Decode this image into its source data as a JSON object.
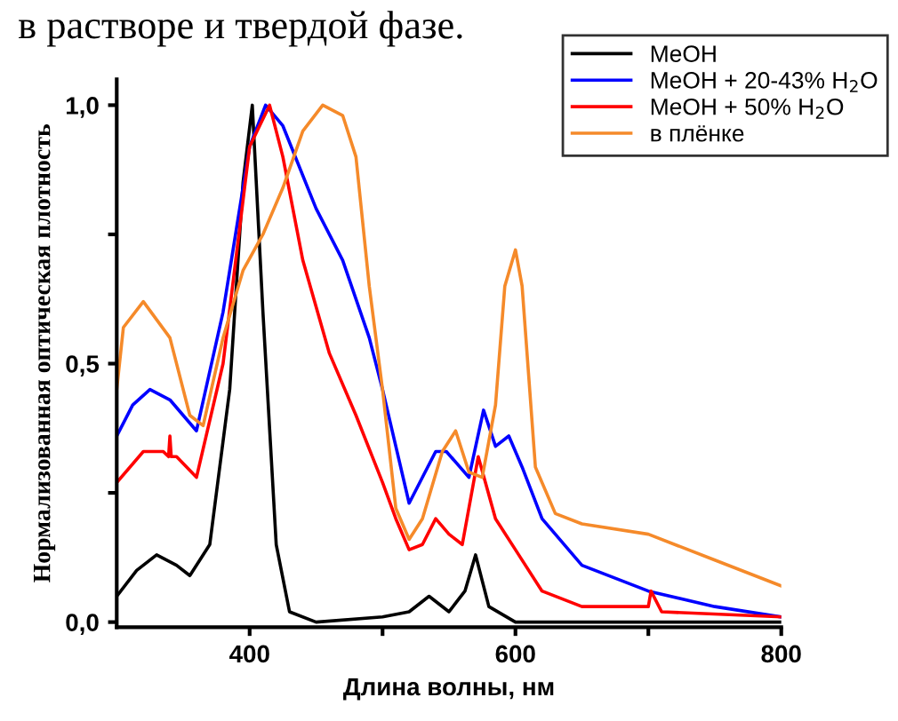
{
  "chart_data": {
    "type": "line",
    "xlabel": "Длина волны, нм",
    "ylabel": "Нормализованная оптическая плотность",
    "annotations": [
      "в растворе и твердой фазе."
    ],
    "xlim": [
      300,
      800
    ],
    "ylim": [
      -0.01,
      1.05
    ],
    "xticks": [
      400,
      {
        "value": 500,
        "label": null
      },
      600,
      {
        "value": 700,
        "label": null
      },
      800
    ],
    "yticks": [
      {
        "value": 0,
        "label": "0,0"
      },
      {
        "value": 0.25,
        "label": null
      },
      {
        "value": 0.5,
        "label": "0,5"
      },
      {
        "value": 0.75,
        "label": null
      },
      {
        "value": 1.0,
        "label": "1,0"
      }
    ],
    "legend": "top right",
    "grid": false,
    "marker": "none",
    "line_style": "solid",
    "series": [
      {
        "name": "MeOH",
        "color": "#000000",
        "x": [
          300,
          315,
          330,
          345,
          355,
          370,
          385,
          395,
          402,
          410,
          420,
          430,
          450,
          500,
          520,
          535,
          550,
          562,
          570,
          580,
          600,
          650,
          700,
          800
        ],
        "values": [
          0.05,
          0.1,
          0.13,
          0.11,
          0.09,
          0.15,
          0.45,
          0.85,
          1.0,
          0.6,
          0.15,
          0.02,
          0.0,
          0.01,
          0.02,
          0.05,
          0.02,
          0.06,
          0.13,
          0.03,
          0.0,
          0.0,
          0.0,
          0.0
        ]
      },
      {
        "name": "MeOH + 20-43% H$_{2}$O",
        "color": "#0000ff",
        "x": [
          300,
          312,
          325,
          340,
          360,
          380,
          400,
          412,
          425,
          450,
          470,
          490,
          500,
          520,
          540,
          548,
          565,
          576,
          585,
          595,
          605,
          620,
          650,
          700,
          750,
          800
        ],
        "values": [
          0.36,
          0.42,
          0.45,
          0.43,
          0.37,
          0.6,
          0.92,
          1.0,
          0.96,
          0.8,
          0.7,
          0.55,
          0.45,
          0.23,
          0.33,
          0.33,
          0.28,
          0.41,
          0.34,
          0.36,
          0.3,
          0.2,
          0.11,
          0.06,
          0.03,
          0.01
        ]
      },
      {
        "name": "MeOH + 50% H$_{2}$O",
        "color": "#ff0000",
        "x": [
          300,
          320,
          335,
          339,
          340,
          341,
          345,
          360,
          380,
          400,
          415,
          425,
          440,
          460,
          480,
          500,
          510,
          520,
          530,
          540,
          550,
          560,
          572,
          585,
          600,
          620,
          650,
          700,
          702,
          710,
          800
        ],
        "values": [
          0.27,
          0.33,
          0.33,
          0.32,
          0.36,
          0.32,
          0.32,
          0.28,
          0.5,
          0.92,
          1.0,
          0.9,
          0.7,
          0.52,
          0.4,
          0.27,
          0.2,
          0.14,
          0.15,
          0.2,
          0.17,
          0.15,
          0.32,
          0.2,
          0.14,
          0.06,
          0.03,
          0.03,
          0.06,
          0.02,
          0.01
        ]
      },
      {
        "name": "в плёнке",
        "color": "#f58a2a",
        "x": [
          300,
          305,
          320,
          340,
          355,
          365,
          380,
          395,
          410,
          425,
          440,
          455,
          470,
          480,
          490,
          500,
          510,
          520,
          530,
          545,
          555,
          565,
          575,
          585,
          592,
          600,
          605,
          615,
          630,
          650,
          700,
          750,
          800
        ],
        "values": [
          0.45,
          0.57,
          0.62,
          0.55,
          0.4,
          0.38,
          0.55,
          0.68,
          0.75,
          0.84,
          0.95,
          1.0,
          0.98,
          0.9,
          0.65,
          0.45,
          0.22,
          0.16,
          0.2,
          0.33,
          0.37,
          0.29,
          0.28,
          0.42,
          0.65,
          0.72,
          0.65,
          0.3,
          0.21,
          0.19,
          0.17,
          0.12,
          0.07
        ]
      }
    ]
  }
}
